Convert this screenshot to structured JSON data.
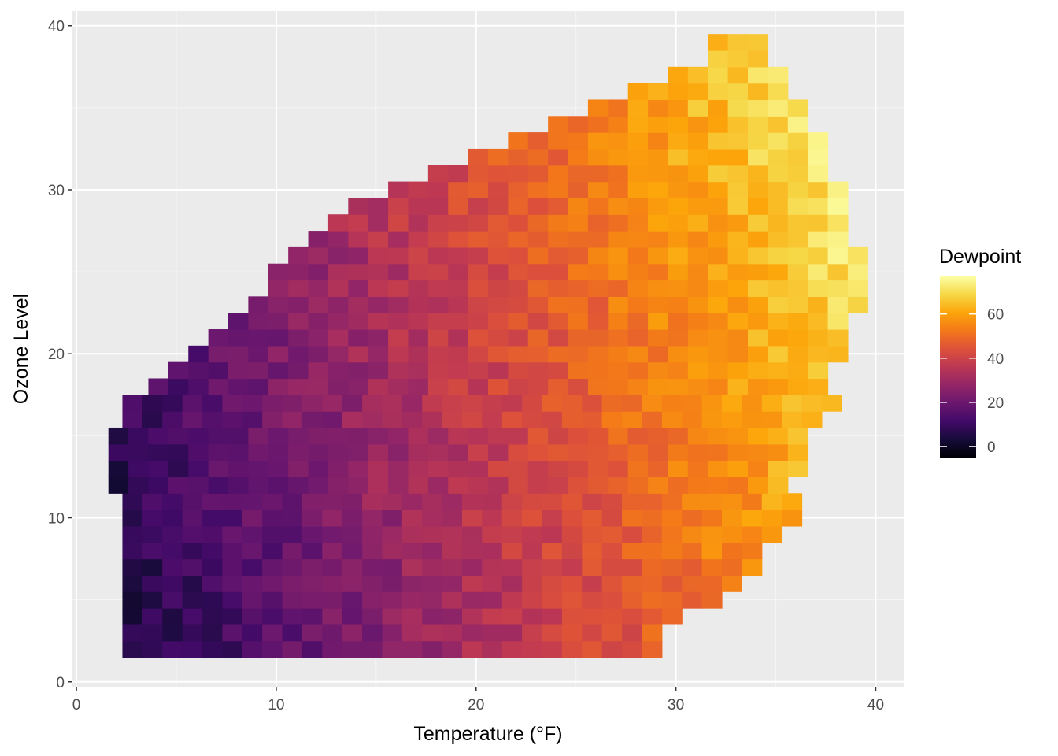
{
  "chart_data": {
    "type": "heatmap",
    "title": "",
    "xlabel": "Temperature (°F)",
    "ylabel": "Ozone Level",
    "xlim": [
      -0.2,
      41.4
    ],
    "ylim": [
      -0.3,
      40.9
    ],
    "x_ticks": [
      0,
      10,
      20,
      30,
      40
    ],
    "y_ticks": [
      0,
      10,
      20,
      30,
      40
    ],
    "grid": true,
    "legend": {
      "title": "Dewpoint",
      "position": "right",
      "range": [
        -5,
        77
      ],
      "ticks": [
        0,
        20,
        40,
        60
      ],
      "colormap": "inferno"
    },
    "cell": {
      "w": 1.0,
      "h": 1.0
    },
    "domain": {
      "y_bottom": 1.5,
      "y_top": 39.5,
      "x_left": [
        2.3,
        2.3,
        2.3,
        2.3,
        2.3,
        2.3,
        2.3,
        2.3,
        2.3,
        2.3,
        1.6,
        1.6,
        1.6,
        1.6,
        2.3,
        2.3,
        3.6,
        4.6,
        5.6,
        6.6,
        7.6,
        8.6,
        9.6,
        9.6,
        10.6,
        11.6,
        12.6,
        13.6,
        15.6,
        17.6,
        19.6,
        21.6,
        23.6,
        25.6,
        27.6,
        29.6,
        31.6,
        31.6
      ],
      "x_right": [
        28.4,
        28.4,
        29.4,
        31.4,
        32.4,
        33.4,
        33.4,
        34.4,
        35.4,
        35.4,
        35.4,
        36.4,
        36.4,
        36.4,
        36.4,
        37.4,
        37.4,
        37.4,
        38.4,
        38.4,
        38.4,
        39.4,
        39.4,
        39.4,
        39.4,
        38.4,
        38.4,
        38.4,
        38.4,
        37.4,
        37.4,
        37.4,
        36.4,
        36.4,
        35.4,
        35.4,
        34.4,
        34.4
      ]
    },
    "values_model": "Dewpoint ≈ -1 + 1.6·Temperature + 0.4·Ozone (approx. field read from the color map, clamped to the legend range)"
  }
}
